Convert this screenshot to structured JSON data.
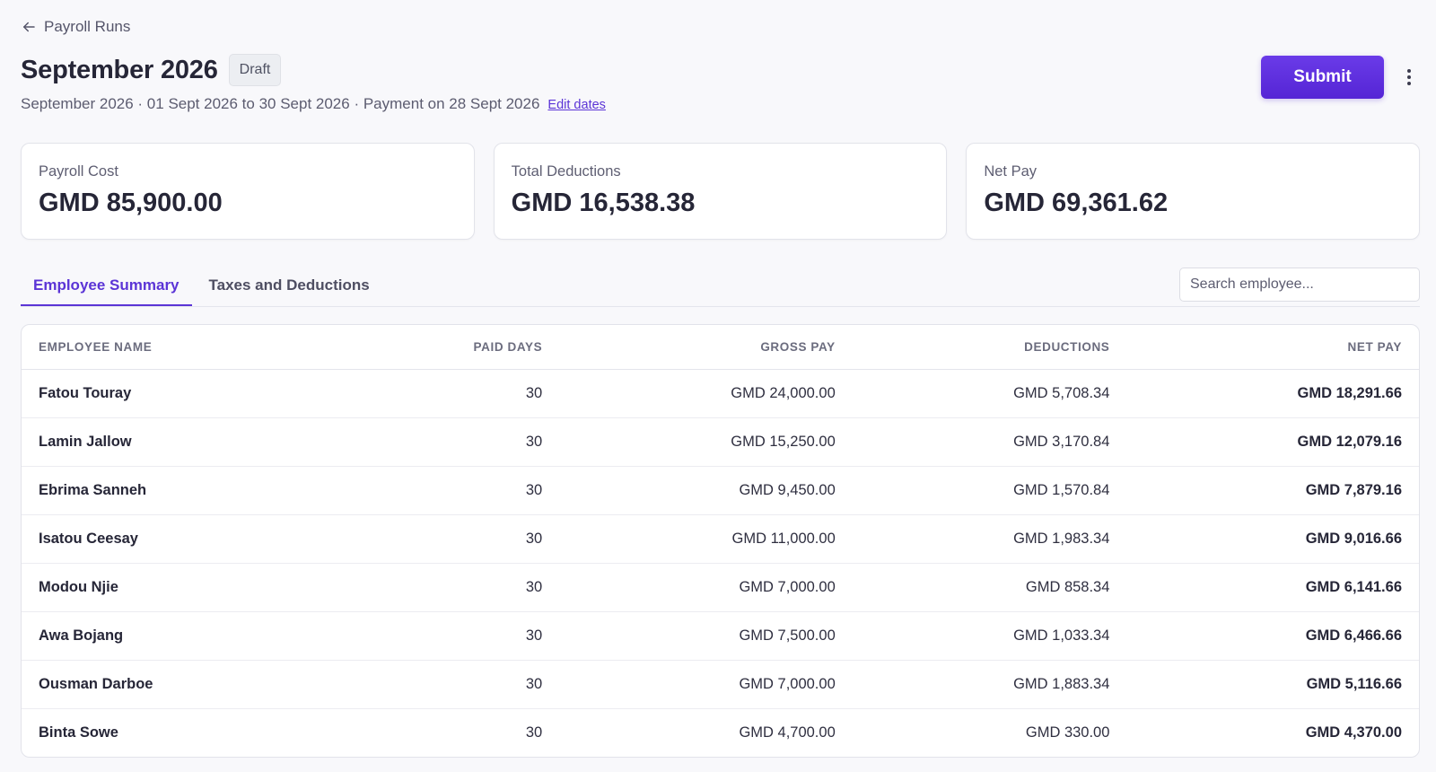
{
  "nav": {
    "back_label": "Payroll Runs"
  },
  "header": {
    "title": "September 2026",
    "status": "Draft",
    "subtitle": "September 2026 · 01 Sept 2026 to 30 Sept 2026 · Payment on 28 Sept 2026",
    "edit_dates_label": "Edit dates",
    "submit_label": "Submit"
  },
  "stats": [
    {
      "label": "Payroll Cost",
      "value": "GMD 85,900.00"
    },
    {
      "label": "Total Deductions",
      "value": "GMD 16,538.38"
    },
    {
      "label": "Net Pay",
      "value": "GMD 69,361.62"
    }
  ],
  "tabs": [
    {
      "label": "Employee Summary",
      "active": true
    },
    {
      "label": "Taxes and Deductions",
      "active": false
    }
  ],
  "search": {
    "placeholder": "Search employee..."
  },
  "table": {
    "columns": [
      "EMPLOYEE NAME",
      "PAID DAYS",
      "GROSS PAY",
      "DEDUCTIONS",
      "NET PAY"
    ],
    "rows": [
      {
        "name": "Fatou Touray",
        "paid_days": "30",
        "gross": "GMD 24,000.00",
        "deductions": "GMD 5,708.34",
        "net": "GMD 18,291.66"
      },
      {
        "name": "Lamin Jallow",
        "paid_days": "30",
        "gross": "GMD 15,250.00",
        "deductions": "GMD 3,170.84",
        "net": "GMD 12,079.16"
      },
      {
        "name": "Ebrima Sanneh",
        "paid_days": "30",
        "gross": "GMD 9,450.00",
        "deductions": "GMD 1,570.84",
        "net": "GMD 7,879.16"
      },
      {
        "name": "Isatou Ceesay",
        "paid_days": "30",
        "gross": "GMD 11,000.00",
        "deductions": "GMD 1,983.34",
        "net": "GMD 9,016.66"
      },
      {
        "name": "Modou Njie",
        "paid_days": "30",
        "gross": "GMD 7,000.00",
        "deductions": "GMD 858.34",
        "net": "GMD 6,141.66"
      },
      {
        "name": "Awa Bojang",
        "paid_days": "30",
        "gross": "GMD 7,500.00",
        "deductions": "GMD 1,033.34",
        "net": "GMD 6,466.66"
      },
      {
        "name": "Ousman Darboe",
        "paid_days": "30",
        "gross": "GMD 7,000.00",
        "deductions": "GMD 1,883.34",
        "net": "GMD 5,116.66"
      },
      {
        "name": "Binta Sowe",
        "paid_days": "30",
        "gross": "GMD 4,700.00",
        "deductions": "GMD 330.00",
        "net": "GMD 4,370.00"
      }
    ]
  },
  "colors": {
    "accent": "#5b34d6",
    "background": "#f8f8fb",
    "text": "#262637"
  },
  "icons": {
    "back": "arrow-left-icon",
    "more": "kebab-menu-icon"
  }
}
